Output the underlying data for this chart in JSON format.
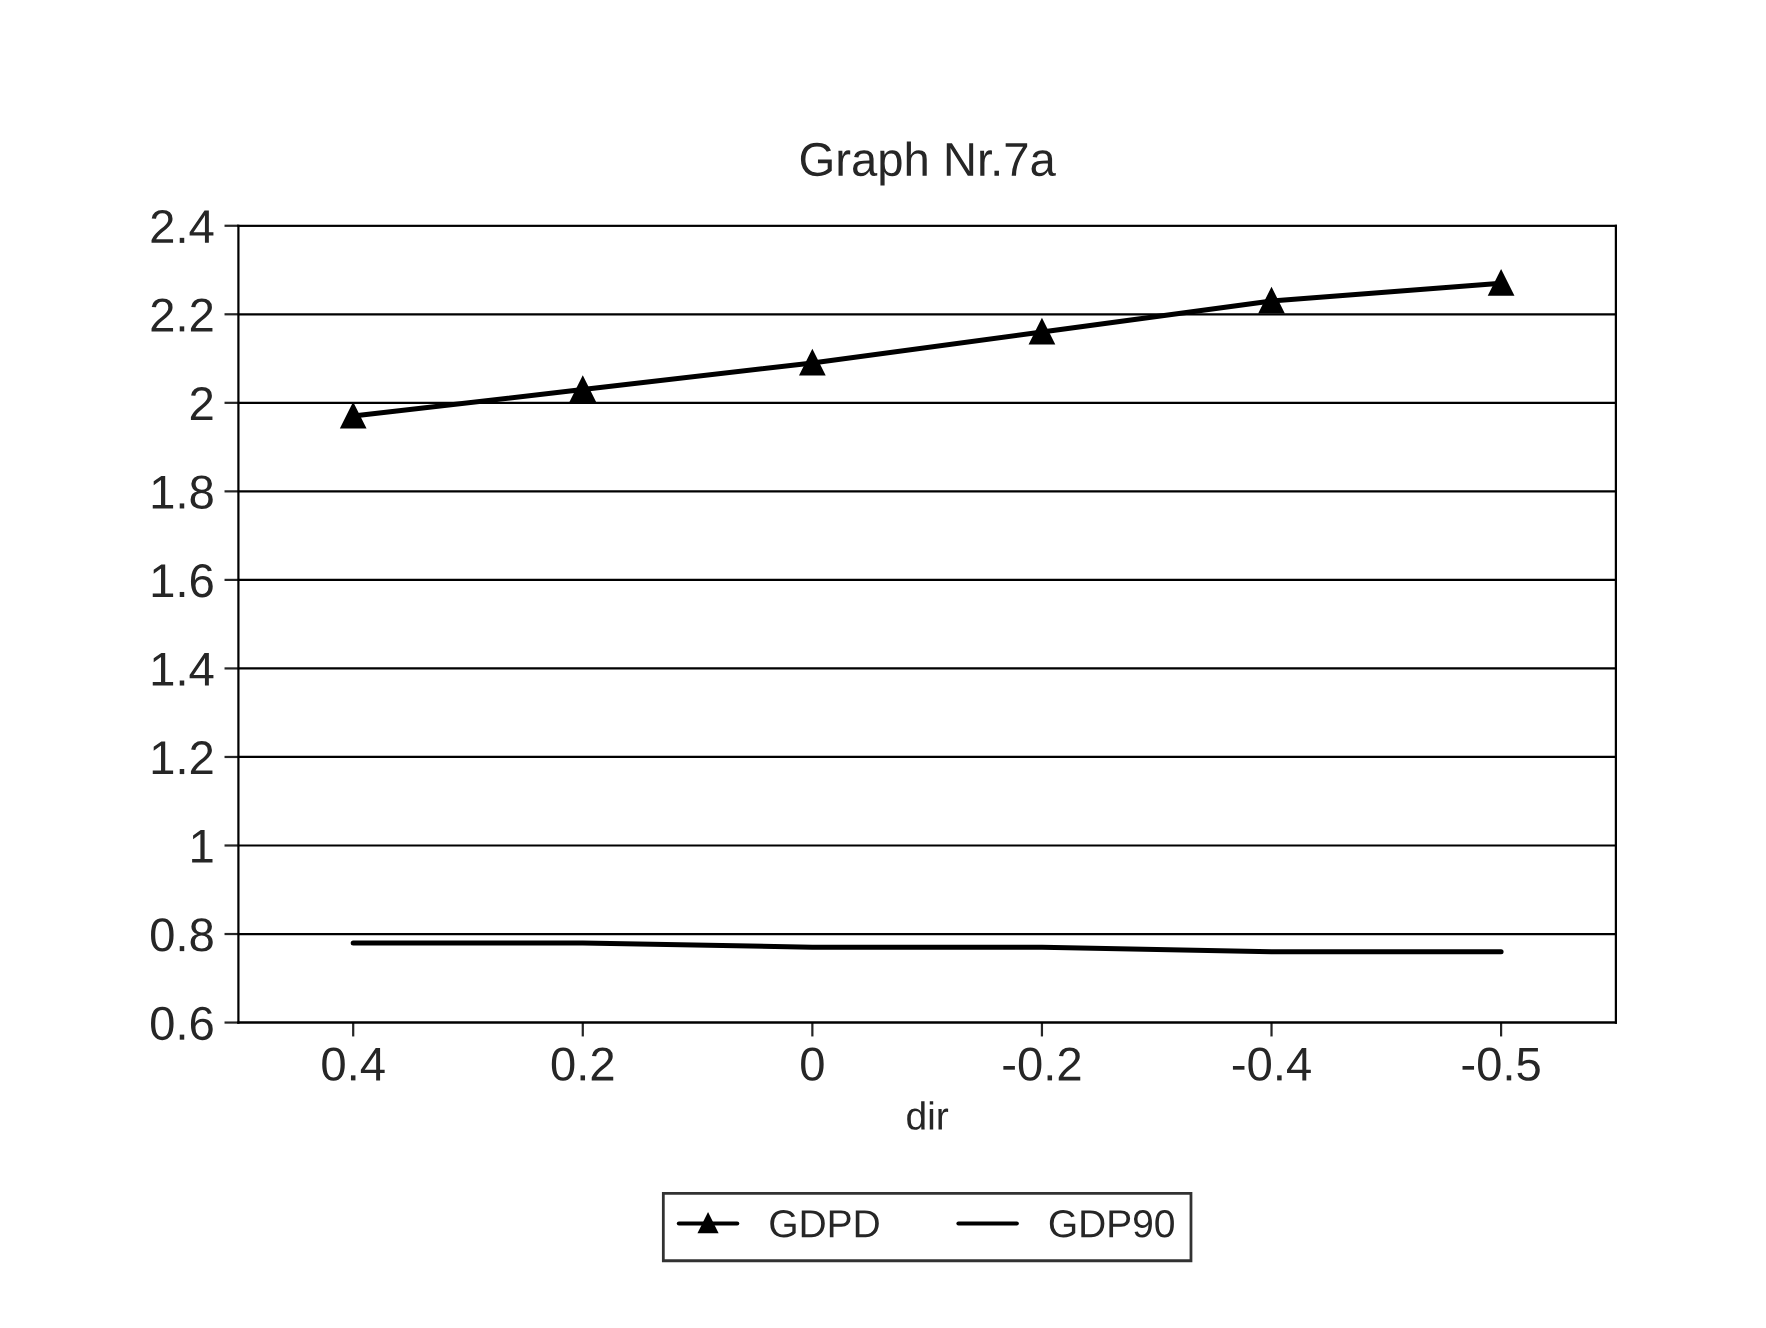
{
  "chart_data": {
    "type": "line",
    "title": "Graph Nr.7a",
    "xlabel": "dir",
    "categories": [
      "0.4",
      "0.2",
      "0",
      "-0.2",
      "-0.4",
      "-0.5"
    ],
    "series": [
      {
        "name": "GDPD",
        "color": "#000000",
        "marker": "triangle",
        "values": [
          1.97,
          2.03,
          2.09,
          2.16,
          2.23,
          2.27
        ]
      },
      {
        "name": "GDP90",
        "color": "#000000",
        "marker": "none",
        "values": [
          0.78,
          0.78,
          0.77,
          0.77,
          0.76,
          0.76
        ]
      }
    ],
    "ylim": [
      0.6,
      2.4
    ],
    "yticks": [
      0.6,
      0.8,
      1,
      1.2,
      1.4,
      1.6,
      1.8,
      2,
      2.2,
      2.4
    ],
    "grid": "y",
    "legend": "bottom",
    "line_style": "solid"
  }
}
